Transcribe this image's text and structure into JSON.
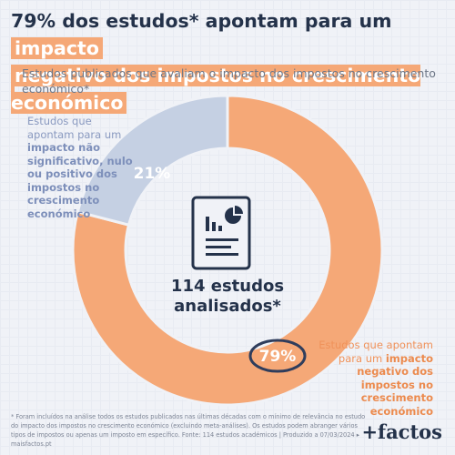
{
  "title": {
    "before": "79% dos estudos* apontam para um ",
    "hl1": "impacto",
    "hl2": "negativo dos impostos no crescimento económico"
  },
  "subtitle": "Estudos publicados que avaliam o impacto dos impostos no crescimento económico*",
  "left_label": {
    "pre": "Estudos que apontam para um ",
    "bold": "impacto não significativo, nulo ou positivo dos impostos no crescimento económico"
  },
  "right_label": {
    "pre": "Estudos que apontam para um ",
    "bold": "impacto negativo dos impostos no crescimento económico"
  },
  "center": {
    "line1": "114 estudos",
    "line2": "analisados*"
  },
  "footnote": "* Foram incluídos na análise todos os estudos publicados nas últimas décadas com o mínimo de relevância no estudo do impacto dos impostos no crescimento económico (excluindo meta-análises). Os estudos podem abranger vários tipos de impostos ou apenas um imposto em específico. Fonte: 114 estudos académicos | Produzido a 07/03/2024 ▸ maisfactos.pt",
  "brand": "+factos",
  "colors": {
    "orange": "#f5a877",
    "blue": "#c5d0e3",
    "navy": "#24324a",
    "accent_circle": "#2f3d5c"
  },
  "icon": "report-document-icon",
  "chart_data": {
    "type": "pie",
    "donut": true,
    "title": "Estudos publicados que avaliam o impacto dos impostos no crescimento económico*",
    "categories": [
      "Estudos que apontam para um impacto negativo dos impostos no crescimento económico",
      "Estudos que apontam para um impacto não significativo, nulo ou positivo dos impostos no crescimento económico"
    ],
    "values": [
      79,
      21
    ],
    "labels": [
      "79%",
      "21%"
    ],
    "colors": [
      "#f5a877",
      "#c5d0e3"
    ]
  }
}
